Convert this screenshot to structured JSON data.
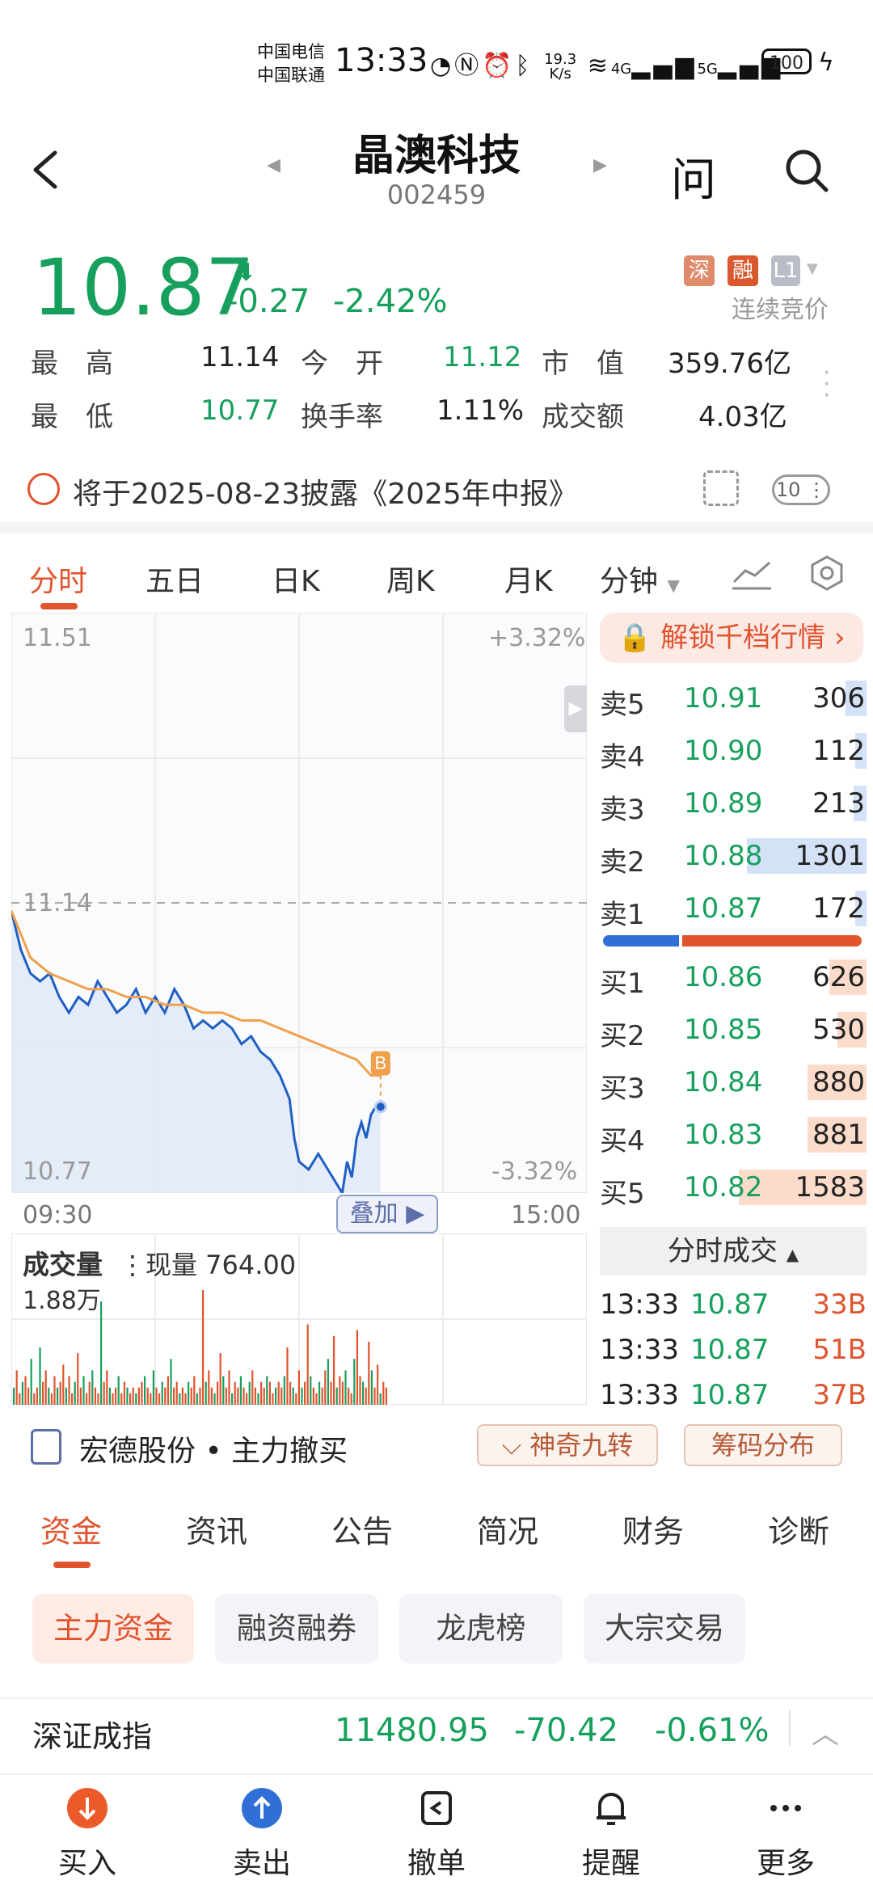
{
  "status_bar": {
    "carrier_1": "中国电信",
    "carrier_2": "中国联通",
    "time": "13:33",
    "net_speed": "19.3",
    "net_unit": "K/s",
    "network_1": "4G",
    "network_2": "5G",
    "battery": "100"
  },
  "header": {
    "title": "晶澳科技",
    "code": "002459",
    "ask_label": "问"
  },
  "quote": {
    "price": "10.87",
    "change": "-0.27",
    "change_pct": "-2.42%",
    "badge_sz": "深",
    "badge_margin": "融",
    "badge_level": "L1",
    "auction_label": "连续竞价",
    "color_down": "#17a05d",
    "color_up": "#e0542e",
    "stats": [
      {
        "label": "最　高",
        "value": "11.14"
      },
      {
        "label": "今　开",
        "value": "11.12"
      },
      {
        "label": "市　值",
        "value": "359.76亿"
      },
      {
        "label": "最　低",
        "value": "10.77"
      },
      {
        "label": "换手率",
        "value": "1.11%"
      },
      {
        "label": "成交额",
        "value": "4.03亿"
      }
    ]
  },
  "notice": {
    "text": "将于2025-08-23披露《2025年中报》",
    "count": "10"
  },
  "chart_tabs": [
    "分时",
    "五日",
    "日K",
    "周K",
    "月K",
    "分钟"
  ],
  "chart_data": {
    "type": "line",
    "title": "",
    "x_start_label": "09:30",
    "x_end_label": "15:00",
    "y_top_label": "11.51",
    "y_bottom_label": "10.77",
    "prev_close_label": "11.14",
    "pct_top_label": "+3.32%",
    "pct_bottom_label": "-3.32%",
    "ylim": [
      10.77,
      11.51
    ],
    "prev_close": 11.14,
    "minutes_total": 240,
    "series": [
      {
        "role": "price",
        "x": [
          0,
          4,
          8,
          12,
          16,
          20,
          24,
          28,
          32,
          36,
          40,
          44,
          48,
          52,
          56,
          60,
          64,
          68,
          72,
          76,
          80,
          84,
          88,
          92,
          96,
          100,
          104,
          108,
          112,
          116,
          118,
          120,
          124,
          128,
          132,
          134,
          136,
          138,
          140,
          142,
          144,
          146,
          148,
          150,
          152,
          154
        ],
        "y": [
          11.13,
          11.08,
          11.05,
          11.04,
          11.05,
          11.02,
          11.0,
          11.02,
          11.01,
          11.04,
          11.02,
          11.0,
          11.01,
          11.03,
          11.0,
          11.02,
          11.0,
          11.03,
          11.01,
          10.98,
          10.99,
          10.98,
          10.99,
          10.98,
          10.96,
          10.97,
          10.95,
          10.94,
          10.92,
          10.89,
          10.84,
          10.81,
          10.8,
          10.82,
          10.8,
          10.79,
          10.78,
          10.77,
          10.81,
          10.79,
          10.84,
          10.86,
          10.84,
          10.87,
          10.88,
          10.88
        ],
        "color": "#1f5fc4"
      },
      {
        "role": "average",
        "x": [
          0,
          8,
          16,
          24,
          32,
          40,
          48,
          56,
          64,
          72,
          80,
          88,
          96,
          104,
          112,
          120,
          128,
          136,
          144,
          150,
          154
        ],
        "y": [
          11.13,
          11.07,
          11.05,
          11.04,
          11.03,
          11.03,
          11.02,
          11.02,
          11.01,
          11.01,
          11.0,
          11.0,
          10.99,
          10.99,
          10.98,
          10.97,
          10.96,
          10.95,
          10.94,
          10.92,
          10.92
        ],
        "color": "#f0a04b"
      }
    ],
    "marker_label": "B",
    "volume": {
      "title": "成交量",
      "current_label": "现量 764.00",
      "max_label": "1.88万",
      "values": [
        3,
        6,
        2,
        4,
        5,
        3,
        8,
        2,
        3,
        10,
        4,
        6,
        3,
        2,
        5,
        3,
        4,
        7,
        3,
        5,
        2,
        4,
        9,
        3,
        5,
        2,
        4,
        6,
        3,
        2,
        18,
        4,
        6,
        3,
        2,
        3,
        5,
        2,
        4,
        3,
        2,
        3,
        2,
        3,
        4,
        5,
        3,
        2,
        6,
        3,
        2,
        4,
        3,
        5,
        8,
        3,
        4,
        2,
        3,
        2,
        4,
        3,
        5,
        2,
        3,
        20,
        4,
        6,
        3,
        2,
        4,
        9,
        5,
        3,
        6,
        2,
        4,
        3,
        5,
        3,
        2,
        4,
        6,
        3,
        2,
        4,
        3,
        5,
        4,
        2,
        3,
        4,
        3,
        5,
        10,
        4,
        3,
        2,
        6,
        3,
        4,
        14,
        5,
        3,
        2,
        4,
        3,
        6,
        8,
        4,
        12,
        3,
        5,
        4,
        6,
        3,
        2,
        8,
        13,
        5,
        4,
        3,
        11,
        6,
        3,
        7,
        2,
        4,
        3
      ]
    }
  },
  "order_book": {
    "unlock_label": "解锁千档行情",
    "asks": [
      {
        "label": "卖5",
        "price": "10.91",
        "qty": "306",
        "fill": 0.08
      },
      {
        "label": "卖4",
        "price": "10.90",
        "qty": "112",
        "fill": 0.03
      },
      {
        "label": "卖3",
        "price": "10.89",
        "qty": "213",
        "fill": 0.05
      },
      {
        "label": "卖2",
        "price": "10.88",
        "qty": "1301",
        "fill": 0.45
      },
      {
        "label": "卖1",
        "price": "10.87",
        "qty": "172",
        "fill": 0.04
      }
    ],
    "bids": [
      {
        "label": "买1",
        "price": "10.86",
        "qty": "626",
        "fill": 0.14
      },
      {
        "label": "买2",
        "price": "10.85",
        "qty": "530",
        "fill": 0.11
      },
      {
        "label": "买3",
        "price": "10.84",
        "qty": "880",
        "fill": 0.22
      },
      {
        "label": "买4",
        "price": "10.83",
        "qty": "881",
        "fill": 0.22
      },
      {
        "label": "买5",
        "price": "10.82",
        "qty": "1583",
        "fill": 0.48
      }
    ],
    "ratio_buy_fraction": 0.3
  },
  "trades": {
    "header": "分时成交",
    "rows": [
      {
        "time": "13:33",
        "price": "10.87",
        "vol": "33B"
      },
      {
        "time": "13:33",
        "price": "10.87",
        "vol": "51B"
      },
      {
        "time": "13:33",
        "price": "10.87",
        "vol": "37B"
      }
    ]
  },
  "overlay_label": "叠加",
  "related": {
    "stock": "宏德股份",
    "dot": "•",
    "action": "主力撤买",
    "chip_1": "神奇九转",
    "chip_2": "筹码分布"
  },
  "fund_tabs": [
    "资金",
    "资讯",
    "公告",
    "简况",
    "财务",
    "诊断"
  ],
  "sub_tabs": [
    "主力资金",
    "融资融券",
    "龙虎榜",
    "大宗交易"
  ],
  "index": {
    "name": "深证成指",
    "value": "11480.95",
    "change": "-70.42",
    "change_pct": "-0.61%"
  },
  "bottom_nav": [
    {
      "label": "买入",
      "icon": "buy-icon"
    },
    {
      "label": "卖出",
      "icon": "sell-icon"
    },
    {
      "label": "撤单",
      "icon": "cancel-order-icon"
    },
    {
      "label": "提醒",
      "icon": "bell-icon"
    },
    {
      "label": "更多",
      "icon": "more-icon"
    }
  ]
}
